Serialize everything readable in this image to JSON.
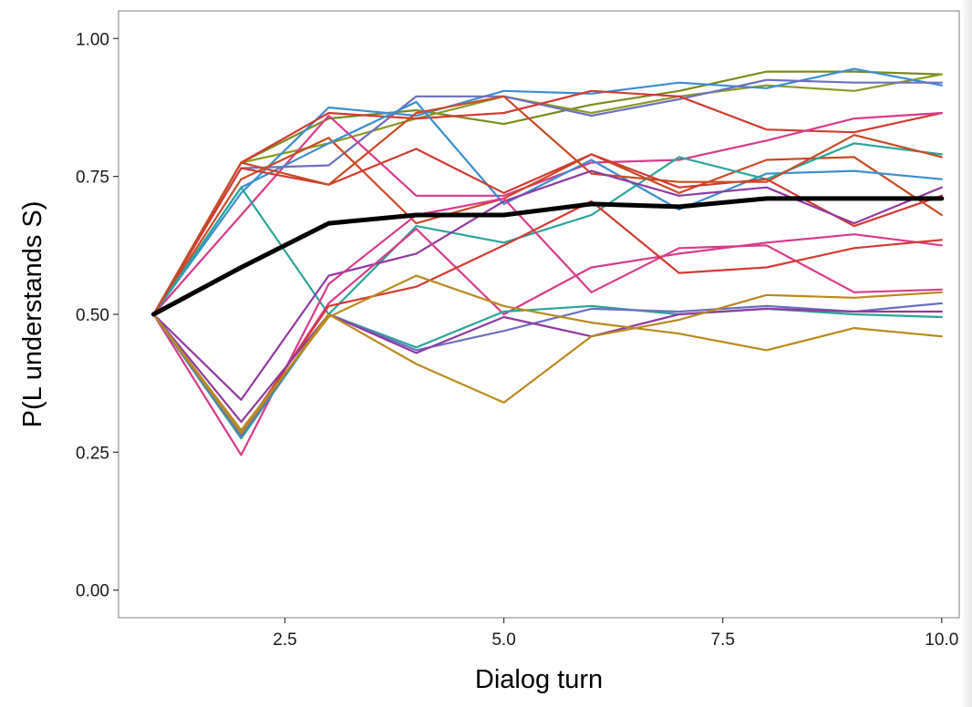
{
  "chart_data": {
    "type": "line",
    "title": "",
    "xlabel": "Dialog turn",
    "ylabel": "P(L understands S)",
    "xlim": [
      0.6,
      10.2
    ],
    "ylim": [
      -0.05,
      1.05
    ],
    "x_ticks": [
      2.5,
      5.0,
      7.5,
      10.0
    ],
    "x_tick_labels": [
      "2.5",
      "5.0",
      "7.5",
      "10.0"
    ],
    "y_ticks": [
      0.0,
      0.25,
      0.5,
      0.75,
      1.0
    ],
    "y_tick_labels": [
      "0.00",
      "0.25",
      "0.50",
      "0.75",
      "1.00"
    ],
    "grid": false,
    "x": [
      1,
      2,
      3,
      4,
      5,
      6,
      7,
      8,
      9,
      10
    ],
    "series": [
      {
        "color": "#7b8a1e",
        "values": [
          0.5,
          0.775,
          0.855,
          0.87,
          0.845,
          0.88,
          0.905,
          0.94,
          0.94,
          0.935
        ]
      },
      {
        "color": "#8a9a24",
        "values": [
          0.5,
          0.775,
          0.81,
          0.855,
          0.895,
          0.865,
          0.895,
          0.915,
          0.905,
          0.935
        ]
      },
      {
        "color": "#3a8fd0",
        "values": [
          0.5,
          0.72,
          0.875,
          0.86,
          0.905,
          0.9,
          0.92,
          0.91,
          0.945,
          0.915
        ]
      },
      {
        "color": "#6e6ec0",
        "values": [
          0.5,
          0.765,
          0.77,
          0.895,
          0.895,
          0.86,
          0.89,
          0.925,
          0.92,
          0.92
        ]
      },
      {
        "color": "#d23a32",
        "values": [
          0.5,
          0.775,
          0.865,
          0.855,
          0.865,
          0.905,
          0.895,
          0.835,
          0.83,
          0.865
        ]
      },
      {
        "color": "#d93a8a",
        "values": [
          0.5,
          0.68,
          0.86,
          0.715,
          0.715,
          0.775,
          0.78,
          0.815,
          0.855,
          0.865
        ]
      },
      {
        "color": "#c94a24",
        "values": [
          0.5,
          0.745,
          0.82,
          0.665,
          0.71,
          0.79,
          0.72,
          0.78,
          0.785,
          0.68
        ]
      },
      {
        "color": "#3a8fd0",
        "values": [
          0.5,
          0.73,
          0.81,
          0.885,
          0.7,
          0.78,
          0.69,
          0.755,
          0.76,
          0.745
        ]
      },
      {
        "color": "#2aa59a",
        "values": [
          0.5,
          0.73,
          0.5,
          0.66,
          0.63,
          0.68,
          0.785,
          0.745,
          0.81,
          0.79
        ]
      },
      {
        "color": "#d23a32",
        "values": [
          0.5,
          0.765,
          0.735,
          0.8,
          0.72,
          0.79,
          0.73,
          0.745,
          0.66,
          0.715
        ]
      },
      {
        "color": "#c94a24",
        "values": [
          0.5,
          0.775,
          0.735,
          0.865,
          0.895,
          0.755,
          0.74,
          0.74,
          0.825,
          0.785
        ]
      },
      {
        "color": "#8f3aa0",
        "values": [
          0.5,
          0.345,
          0.57,
          0.61,
          0.705,
          0.76,
          0.715,
          0.73,
          0.665,
          0.73
        ]
      },
      {
        "color": "#d93a8a",
        "values": [
          0.5,
          0.245,
          0.555,
          0.68,
          0.71,
          0.54,
          0.62,
          0.625,
          0.54,
          0.545
        ]
      },
      {
        "color": "#d93a8a",
        "values": [
          0.5,
          0.28,
          0.52,
          0.655,
          0.5,
          0.585,
          0.61,
          0.63,
          0.645,
          0.625
        ]
      },
      {
        "color": "#d23a32",
        "values": [
          0.5,
          0.285,
          0.515,
          0.55,
          0.625,
          0.705,
          0.575,
          0.585,
          0.62,
          0.635
        ]
      },
      {
        "color": "#2aa59a",
        "values": [
          0.5,
          0.275,
          0.5,
          0.44,
          0.505,
          0.515,
          0.5,
          0.51,
          0.5,
          0.495
        ]
      },
      {
        "color": "#6e6ec0",
        "values": [
          0.5,
          0.28,
          0.5,
          0.435,
          0.47,
          0.51,
          0.505,
          0.515,
          0.505,
          0.52
        ]
      },
      {
        "color": "#8f3aa0",
        "values": [
          0.5,
          0.305,
          0.5,
          0.43,
          0.495,
          0.46,
          0.5,
          0.51,
          0.505,
          0.505
        ]
      },
      {
        "color": "#b88a1e",
        "values": [
          0.5,
          0.29,
          0.495,
          0.57,
          0.515,
          0.485,
          0.465,
          0.435,
          0.475,
          0.46
        ]
      },
      {
        "color": "#b88a1e",
        "values": [
          0.5,
          0.285,
          0.5,
          0.41,
          0.34,
          0.46,
          0.49,
          0.535,
          0.53,
          0.54
        ]
      },
      {
        "color": "#000000",
        "thick": true,
        "values": [
          0.5,
          0.585,
          0.665,
          0.68,
          0.68,
          0.7,
          0.695,
          0.71,
          0.71,
          0.71
        ]
      }
    ]
  }
}
